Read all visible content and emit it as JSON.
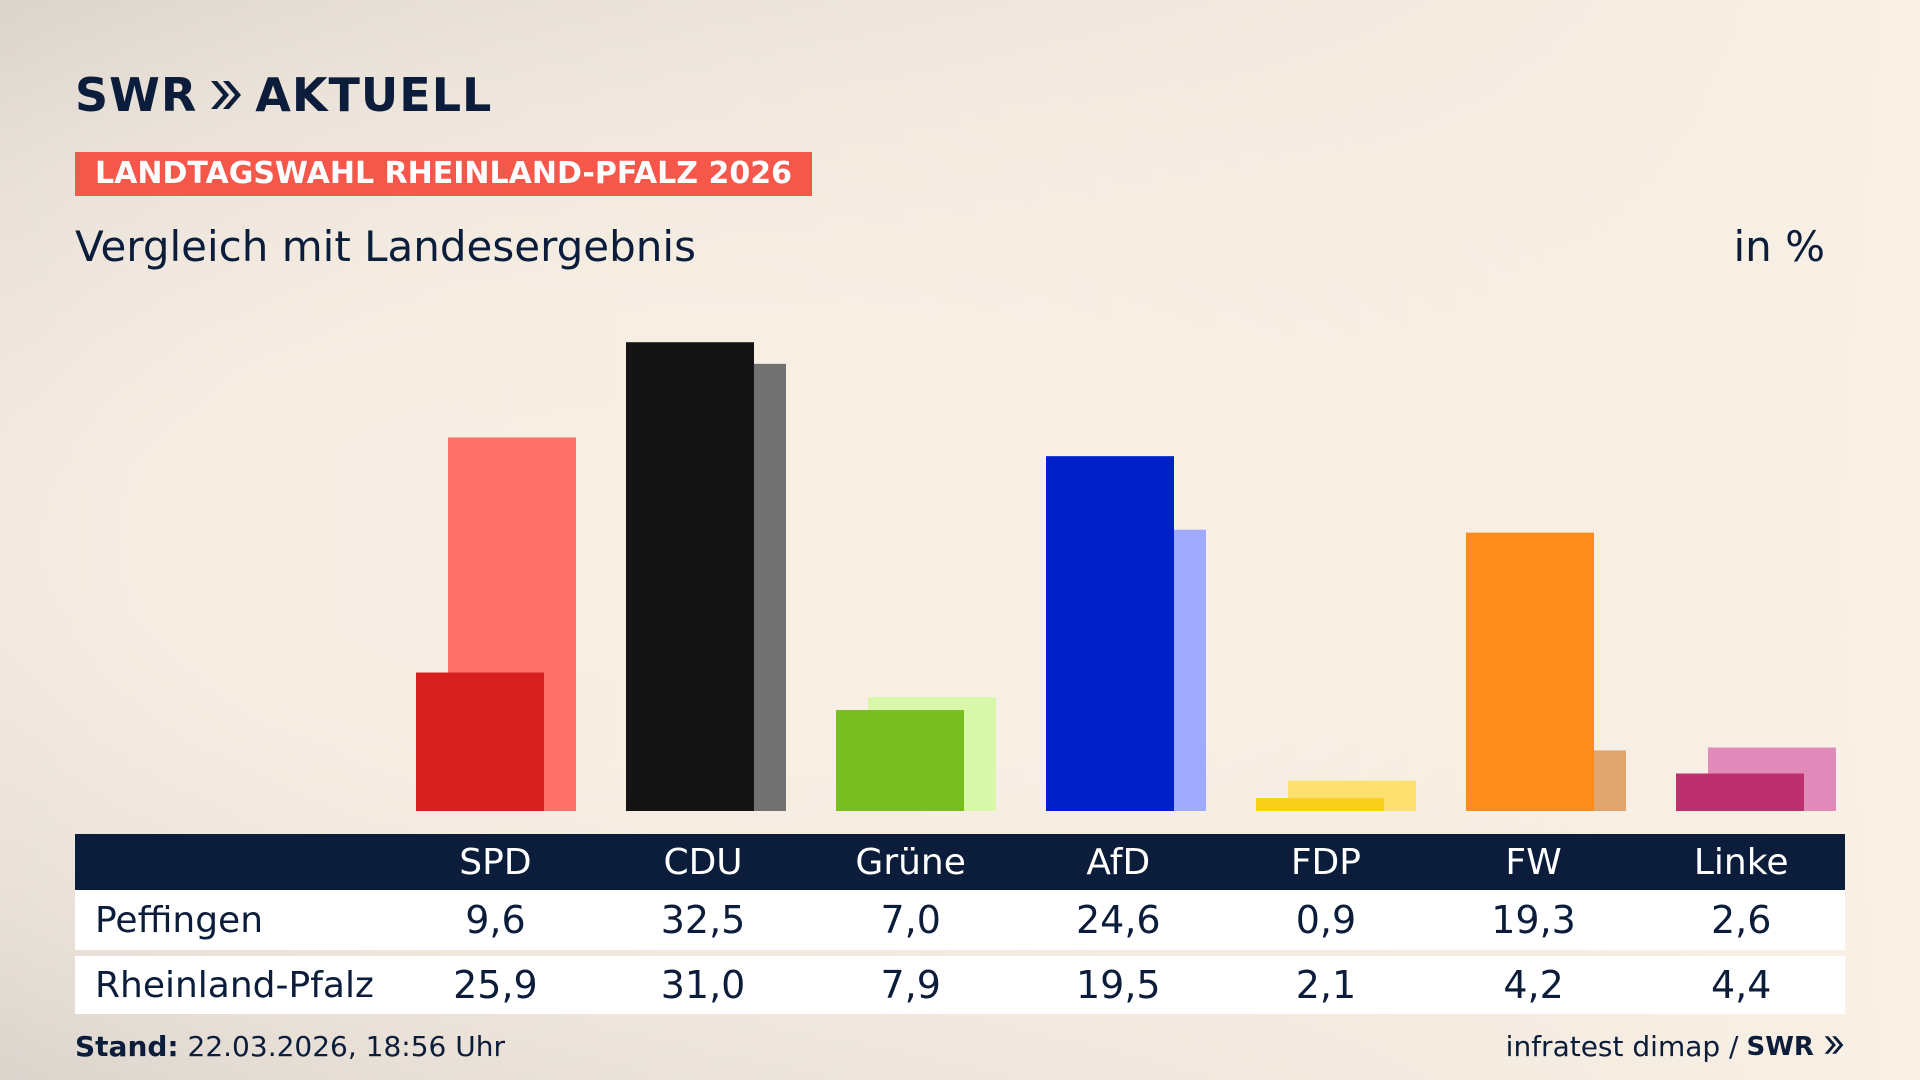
{
  "header": {
    "logo_text": "SWR",
    "logo_suffix": "AKTUELL",
    "election_tag": "LANDTAGSWAHL RHEINLAND-PFALZ 2026",
    "subtitle": "Vergleich mit Landesergebnis",
    "unit": "in %"
  },
  "chart_data": {
    "type": "bar",
    "categories": [
      "SPD",
      "CDU",
      "Grüne",
      "AfD",
      "FDP",
      "FW",
      "Linke"
    ],
    "series": [
      {
        "name": "Peffingen",
        "values": [
          9.6,
          32.5,
          7.0,
          24.6,
          0.9,
          19.3,
          2.6
        ],
        "colors": [
          "#d81f1f",
          "#141414",
          "#78be1e",
          "#0020c8",
          "#f8d01c",
          "#fd8c1a",
          "#bd2f6d"
        ]
      },
      {
        "name": "Rheinland-Pfalz",
        "values": [
          25.9,
          31.0,
          7.9,
          19.5,
          2.1,
          4.2,
          4.4
        ],
        "colors": [
          "#fe7269",
          "#727171",
          "#d8f7a8",
          "#a0aaff",
          "#fde16e",
          "#e1a66f",
          "#df8ab8"
        ]
      }
    ],
    "ylim": [
      0,
      33
    ],
    "grid": false,
    "legend": "none"
  },
  "table": {
    "headers": [
      "SPD",
      "CDU",
      "Grüne",
      "AfD",
      "FDP",
      "FW",
      "Linke"
    ],
    "rows": [
      {
        "label": "Peffingen",
        "values": [
          "9,6",
          "32,5",
          "7,0",
          "24,6",
          "0,9",
          "19,3",
          "2,6"
        ]
      },
      {
        "label": "Rheinland-Pfalz",
        "values": [
          "25,9",
          "31,0",
          "7,9",
          "19,5",
          "2,1",
          "4,2",
          "4,4"
        ]
      }
    ]
  },
  "footer": {
    "stand_label": "Stand:",
    "stand_value": "22.03.2026, 18:56 Uhr",
    "source": "infratest dimap /",
    "source_logo": "SWR"
  },
  "colors": {
    "navy": "#0b1d3a",
    "accent_red": "#f5574a"
  }
}
